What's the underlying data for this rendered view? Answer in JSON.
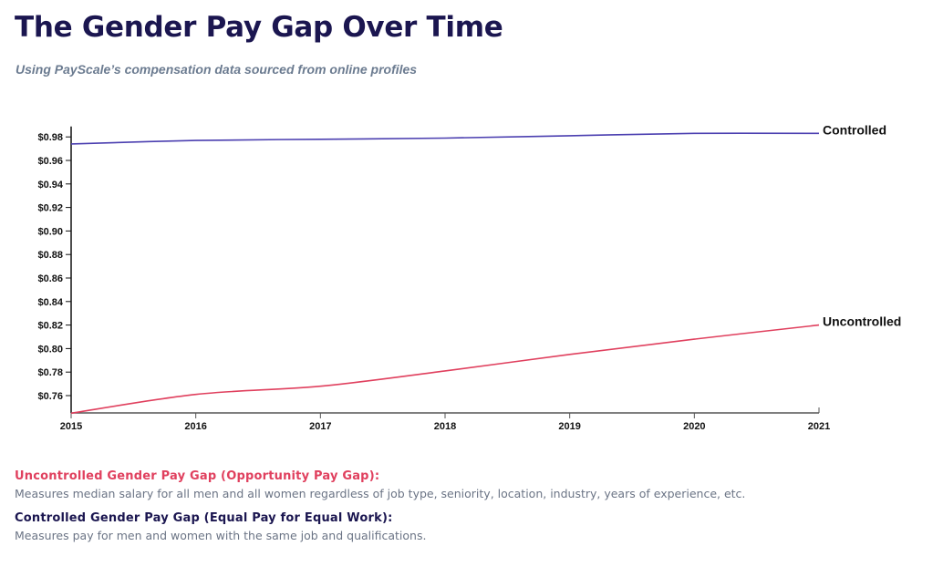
{
  "header": {
    "title": "The Gender Pay Gap Over Time",
    "subtitle": "Using PayScale’s compensation data sourced from online profiles"
  },
  "colors": {
    "title": "#1b1650",
    "controlled": "#4b3fb0",
    "uncontrolled": "#e0405e",
    "axis": "#111111"
  },
  "chart_data": {
    "type": "line",
    "title": "The Gender Pay Gap Over Time",
    "xlabel": "",
    "ylabel": "",
    "x": [
      2015,
      2016,
      2017,
      2018,
      2019,
      2020,
      2021
    ],
    "x_tick_labels": [
      "2015",
      "2016",
      "2017",
      "2018",
      "2019",
      "2020",
      "2021"
    ],
    "ylim": [
      0.745,
      0.985
    ],
    "y_ticks": [
      0.76,
      0.78,
      0.8,
      0.82,
      0.84,
      0.86,
      0.88,
      0.9,
      0.92,
      0.94,
      0.96,
      0.98
    ],
    "y_tick_labels": [
      "$0.76",
      "$0.78",
      "$0.80",
      "$0.82",
      "$0.84",
      "$0.86",
      "$0.88",
      "$0.90",
      "$0.92",
      "$0.94",
      "$0.96",
      "$0.98"
    ],
    "grid": false,
    "legend": "inline-right",
    "series": [
      {
        "name": "Controlled",
        "color": "#4b3fb0",
        "values": [
          0.974,
          0.977,
          0.978,
          0.979,
          0.981,
          0.983,
          0.983
        ]
      },
      {
        "name": "Uncontrolled",
        "color": "#e0405e",
        "values": [
          0.745,
          0.761,
          0.768,
          0.781,
          0.795,
          0.808,
          0.82
        ]
      }
    ]
  },
  "legend": [
    {
      "heading": "Uncontrolled Gender Pay Gap (Opportunity Pay Gap):",
      "description": "Measures median salary for all men and all women regardless of job type, seniority, location, industry, years of experience, etc.",
      "color": "#e0405e"
    },
    {
      "heading": "Controlled Gender Pay Gap (Equal Pay for Equal Work):",
      "description": "Measures pay for men and women with the same job and qualifications.",
      "color": "#1b1650"
    }
  ]
}
